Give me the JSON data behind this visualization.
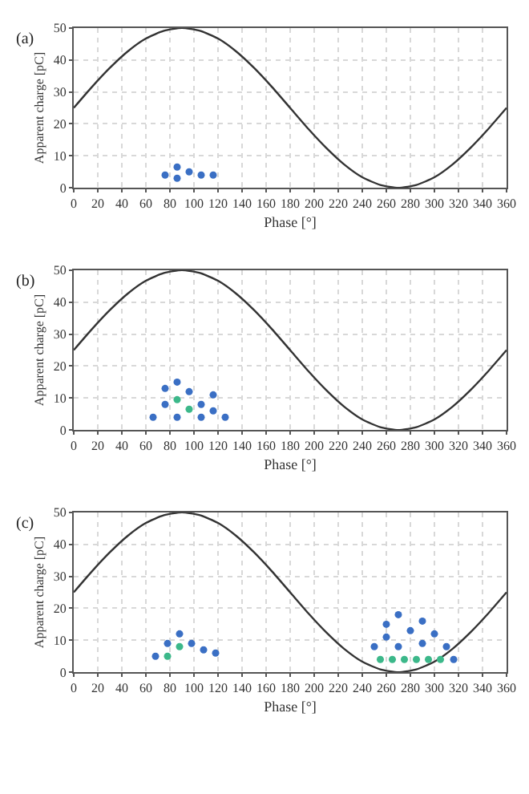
{
  "chart_data": [
    {
      "type": "scatter",
      "title": "(a)",
      "xlabel": "Phase [°]",
      "ylabel": "Apparent charge [pC]",
      "xlim": [
        0,
        360
      ],
      "ylim": [
        0,
        50
      ],
      "xticks": [
        0,
        20,
        40,
        60,
        80,
        100,
        120,
        140,
        160,
        180,
        200,
        220,
        240,
        260,
        280,
        300,
        320,
        340,
        360
      ],
      "yticks": [
        0,
        10,
        20,
        30,
        40,
        50
      ],
      "grid": true,
      "series": [
        {
          "type": "line",
          "marker": "none",
          "color": "#333333",
          "x": [
            0,
            15,
            30,
            45,
            60,
            75,
            90,
            105,
            120,
            135,
            150,
            165,
            180,
            195,
            210,
            225,
            240,
            255,
            270,
            285,
            300,
            315,
            330,
            345,
            360
          ],
          "values": [
            25,
            31.5,
            37.5,
            42.7,
            46.7,
            49.1,
            50,
            49.1,
            46.7,
            42.7,
            37.5,
            31.5,
            25,
            18.5,
            12.5,
            7.3,
            3.3,
            0.9,
            0,
            0.9,
            3.3,
            7.3,
            12.5,
            18.5,
            25
          ]
        },
        {
          "color": "#3a6fc4",
          "marker": "circle",
          "x": [
            76,
            86,
            86,
            96,
            106,
            116
          ],
          "values": [
            4,
            6.5,
            3,
            5,
            4,
            4
          ]
        }
      ]
    },
    {
      "type": "scatter",
      "title": "(b)",
      "xlabel": "Phase [°]",
      "ylabel": "Apparent charge [pC]",
      "xlim": [
        0,
        360
      ],
      "ylim": [
        0,
        50
      ],
      "xticks": [
        0,
        20,
        40,
        60,
        80,
        100,
        120,
        140,
        160,
        180,
        200,
        220,
        240,
        260,
        280,
        300,
        320,
        340,
        360
      ],
      "yticks": [
        0,
        10,
        20,
        30,
        40,
        50
      ],
      "grid": true,
      "series": [
        {
          "type": "line",
          "marker": "none",
          "color": "#333333",
          "x": [
            0,
            15,
            30,
            45,
            60,
            75,
            90,
            105,
            120,
            135,
            150,
            165,
            180,
            195,
            210,
            225,
            240,
            255,
            270,
            285,
            300,
            315,
            330,
            345,
            360
          ],
          "values": [
            25,
            31.5,
            37.5,
            42.7,
            46.7,
            49.1,
            50,
            49.1,
            46.7,
            42.7,
            37.5,
            31.5,
            25,
            18.5,
            12.5,
            7.3,
            3.3,
            0.9,
            0,
            0.9,
            3.3,
            7.3,
            12.5,
            18.5,
            25
          ]
        },
        {
          "color": "#3a6fc4",
          "marker": "circle",
          "x": [
            66,
            76,
            76,
            86,
            86,
            96,
            106,
            106,
            116,
            116,
            126
          ],
          "values": [
            4,
            8,
            13,
            4,
            15,
            12,
            8,
            4,
            11,
            6,
            4
          ]
        },
        {
          "color": "#3cb88a",
          "marker": "circle",
          "x": [
            86,
            96
          ],
          "values": [
            9.5,
            6.5
          ]
        }
      ]
    },
    {
      "type": "scatter",
      "title": "(c)",
      "xlabel": "Phase [°]",
      "ylabel": "Apparent charge [pC]",
      "xlim": [
        0,
        360
      ],
      "ylim": [
        0,
        50
      ],
      "xticks": [
        0,
        20,
        40,
        60,
        80,
        100,
        120,
        140,
        160,
        180,
        200,
        220,
        240,
        260,
        280,
        300,
        320,
        340,
        360
      ],
      "yticks": [
        0,
        10,
        20,
        30,
        40,
        50
      ],
      "grid": true,
      "series": [
        {
          "type": "line",
          "marker": "none",
          "color": "#333333",
          "x": [
            0,
            15,
            30,
            45,
            60,
            75,
            90,
            105,
            120,
            135,
            150,
            165,
            180,
            195,
            210,
            225,
            240,
            255,
            270,
            285,
            300,
            315,
            330,
            345,
            360
          ],
          "values": [
            25,
            31.5,
            37.5,
            42.7,
            46.7,
            49.1,
            50,
            49.1,
            46.7,
            42.7,
            37.5,
            31.5,
            25,
            18.5,
            12.5,
            7.3,
            3.3,
            0.9,
            0,
            0.9,
            3.3,
            7.3,
            12.5,
            18.5,
            25
          ]
        },
        {
          "color": "#3a6fc4",
          "marker": "circle",
          "x": [
            68,
            78,
            88,
            98,
            108,
            118,
            250,
            260,
            260,
            270,
            270,
            280,
            290,
            290,
            300,
            310,
            316
          ],
          "values": [
            5,
            9,
            12,
            9,
            7,
            6,
            8,
            15,
            11,
            18,
            8,
            13,
            16,
            9,
            12,
            8,
            4
          ]
        },
        {
          "color": "#3cb88a",
          "marker": "circle",
          "x": [
            78,
            88,
            255,
            265,
            275,
            285,
            295,
            305
          ],
          "values": [
            5,
            8,
            4,
            4,
            4,
            4,
            4,
            4
          ]
        }
      ]
    }
  ]
}
